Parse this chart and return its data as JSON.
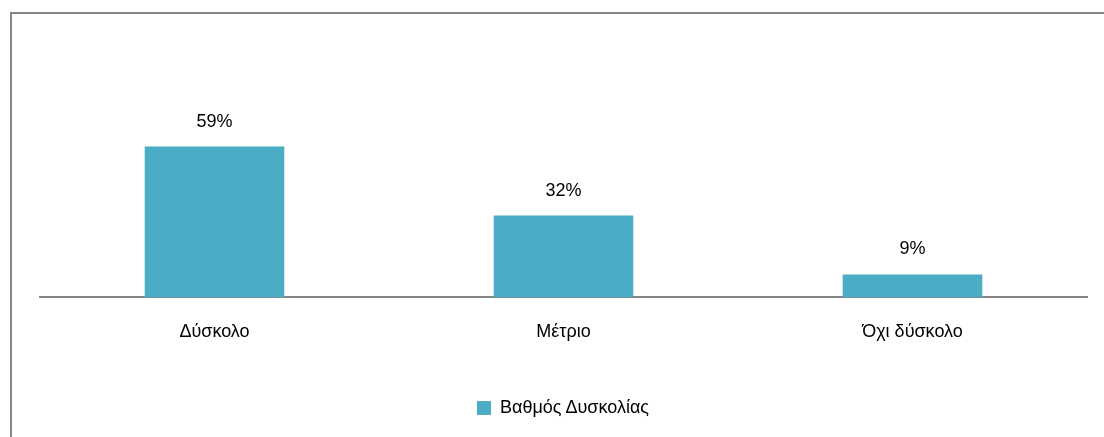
{
  "chart_data": {
    "type": "bar",
    "categories": [
      "Δύσκολο",
      "Μέτριο",
      "Όχι δύσκολο"
    ],
    "series": [
      {
        "name": "Βαθμός Δυσκολίας",
        "color": "#4bacc6",
        "values": [
          59,
          32,
          9
        ],
        "value_labels": [
          "59%",
          "32%",
          "9%"
        ]
      }
    ],
    "legend": "bottom",
    "tick_labels": "x"
  }
}
